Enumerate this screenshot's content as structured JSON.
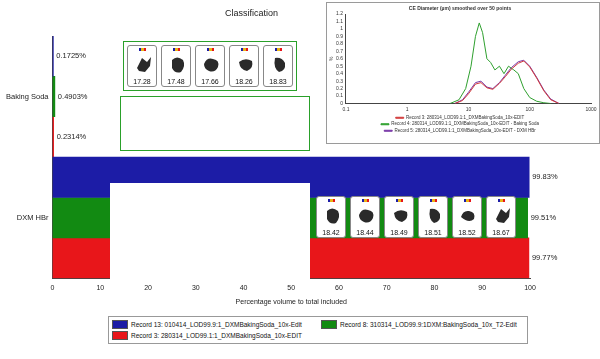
{
  "chart_data": [
    {
      "type": "bar",
      "orientation": "horizontal",
      "title": "Classification",
      "x_label": "Percentage volume to total included",
      "categories": [
        "Baking Soda",
        "DXM HBr"
      ],
      "series": [
        {
          "name": "Record 13: 010414_LOD99.9:1_DXMBakingSoda_10x-Edit",
          "color": "#1c1ca6",
          "values": [
            0.1725,
            99.83
          ],
          "value_labels": [
            "0.1725%",
            "99.83%"
          ]
        },
        {
          "name": "Record 8: 310314_LOD99.9:1DXM:BakingSoda_10x_T2-Edit",
          "color": "#128a12",
          "values": [
            0.4903,
            99.51
          ],
          "value_labels": [
            "0.4903%",
            "99.51%"
          ]
        },
        {
          "name": "Record 3: 280314_LOD99.1:1_DXMBakingSoda_10x-EDIT",
          "color": "#e8161a",
          "values": [
            0.2314,
            99.77
          ],
          "value_labels": [
            "0.2314%",
            "99.77%"
          ]
        }
      ],
      "xlim": [
        0,
        100
      ],
      "xticks": [
        0,
        10,
        20,
        30,
        40,
        50,
        60,
        70,
        80,
        90,
        100
      ],
      "grid": false,
      "data_labels": true,
      "legend": "bottom"
    },
    {
      "type": "line",
      "title": "CE Diameter (µm) smoothed over 50 points",
      "y_label": "%",
      "log": "x",
      "xlim": [
        0.1,
        1000
      ],
      "xticks": [
        0.1,
        1,
        10,
        100,
        1000
      ],
      "ylim": [
        0,
        1.2
      ],
      "yticks": [
        0,
        0.1,
        0.2,
        0.3,
        0.4,
        0.5,
        0.6,
        0.7,
        0.8,
        0.9,
        1,
        1.1,
        1.2
      ],
      "grid": false,
      "legend": "bottom",
      "series": [
        {
          "name": "Record 3: 280314_LOD99.1:1_DXMBakingSoda_10x-EDIT",
          "color": "#d23c3c",
          "x": [
            6,
            8,
            10,
            13,
            16,
            20,
            25,
            32,
            40,
            50,
            65,
            80,
            100,
            130,
            170,
            220,
            300
          ],
          "values": [
            0,
            0.04,
            0.13,
            0.26,
            0.28,
            0.21,
            0.19,
            0.27,
            0.36,
            0.46,
            0.54,
            0.57,
            0.49,
            0.34,
            0.17,
            0.05,
            0
          ]
        },
        {
          "name": "Record 4: 280314_LOD99.1:1_DXMBakingSoda_10x-EDIT - Baking Soda",
          "color": "#2fa02f",
          "x": [
            5,
            7,
            9,
            11,
            13,
            15,
            17,
            20,
            23,
            27,
            32,
            38,
            45,
            55,
            65,
            80,
            100,
            130,
            170,
            220
          ],
          "values": [
            0,
            0.05,
            0.2,
            0.5,
            0.9,
            1.08,
            0.95,
            0.6,
            0.55,
            0.45,
            0.5,
            0.4,
            0.5,
            0.45,
            0.4,
            0.2,
            0.08,
            0.03,
            0.01,
            0
          ]
        },
        {
          "name": "Record 5: 280314_LOD99.1:1_DXMBakingSoda_10x-EDIT - DXM HBr",
          "color": "#7a3aa8",
          "x": [
            6,
            8,
            10,
            13,
            16,
            20,
            25,
            32,
            40,
            50,
            65,
            80,
            100,
            130,
            170,
            220,
            300
          ],
          "values": [
            0,
            0.05,
            0.15,
            0.28,
            0.3,
            0.22,
            0.2,
            0.28,
            0.38,
            0.48,
            0.56,
            0.58,
            0.5,
            0.35,
            0.18,
            0.06,
            0
          ]
        }
      ]
    }
  ],
  "particle_images": [
    [
      17.28,
      17.48,
      17.66,
      18.26,
      18.83
    ],
    [
      18.42,
      18.44,
      18.49,
      18.51,
      18.52,
      18.67
    ]
  ]
}
